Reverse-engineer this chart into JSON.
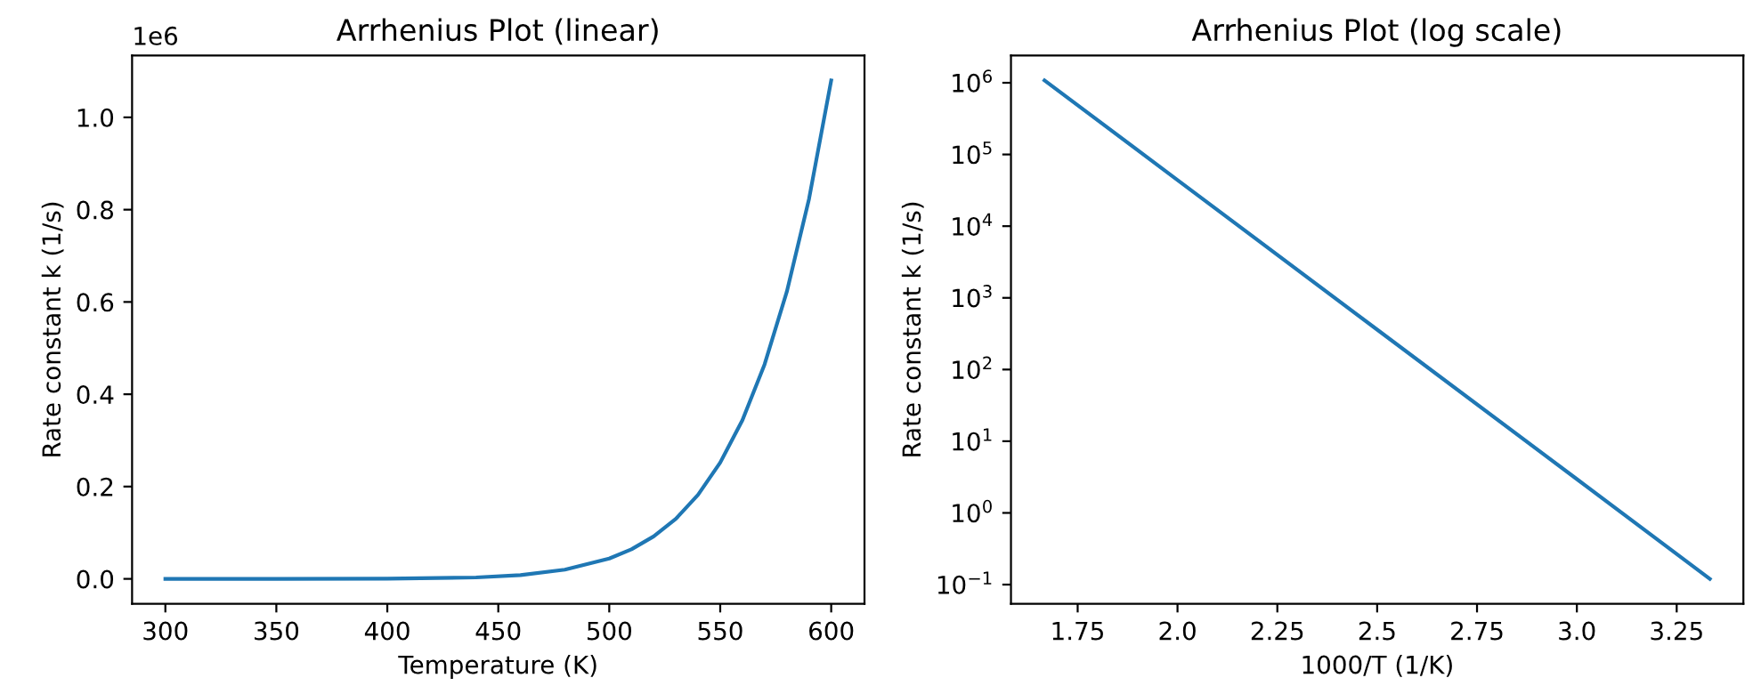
{
  "chart_data": [
    {
      "type": "line",
      "title": "Arrhenius Plot (linear)",
      "xlabel": "Temperature (K)",
      "ylabel": "Rate constant k (1/s)",
      "x": [
        300,
        350,
        400,
        440,
        460,
        480,
        500,
        510,
        520,
        530,
        540,
        550,
        560,
        570,
        580,
        590,
        600
      ],
      "series": [
        {
          "color": "#1f77b4",
          "values": [
            0,
            0,
            0.0004,
            0.003,
            0.008,
            0.02,
            0.044,
            0.064,
            0.092,
            0.13,
            0.182,
            0.252,
            0.344,
            0.465,
            0.622,
            0.823,
            1.08
          ]
        }
      ],
      "xlim": [
        285,
        615
      ],
      "xticks": [
        300,
        350,
        400,
        450,
        500,
        550,
        600
      ],
      "ylim": [
        -0.054,
        1.134
      ],
      "yticks": [
        {
          "value": 0,
          "label": "0.0"
        },
        0.2,
        0.4,
        0.6,
        0.8,
        {
          "value": 1.0,
          "label": "1.0"
        }
      ],
      "annotations": [
        "1e6"
      ],
      "grid": false
    },
    {
      "type": "line",
      "title": "Arrhenius Plot (log scale)",
      "xlabel": "1000/T (1/K)",
      "ylabel": "Rate constant k (1/s)",
      "x": [
        1.667,
        2.0,
        2.5,
        3.0,
        3.333
      ],
      "series": [
        {
          "color": "#1f77b4",
          "values": [
            1080000,
            44000,
            360,
            2.96,
            0.12
          ]
        }
      ],
      "log": "y",
      "xlim": [
        1.583,
        3.417
      ],
      "xticks": [
        1.75,
        {
          "value": 2,
          "label": "2.0"
        },
        2.25,
        2.5,
        2.75,
        {
          "value": 3,
          "label": "3.0"
        },
        3.25
      ],
      "ylim": [
        0.054,
        2400000
      ],
      "yticks": [
        {
          "value": 0.1,
          "label": "10$^{−1}$"
        },
        {
          "value": 1,
          "label": "10$^{0}$"
        },
        {
          "value": 10,
          "label": "10$^{1}$"
        },
        {
          "value": 100,
          "label": "10$^{2}$"
        },
        {
          "value": 1000,
          "label": "10$^{3}$"
        },
        {
          "value": 10000,
          "label": "10$^{4}$"
        },
        {
          "value": 100000,
          "label": "10$^{5}$"
        },
        {
          "value": 1000000,
          "label": "10$^{6}$"
        }
      ],
      "grid": false
    }
  ]
}
